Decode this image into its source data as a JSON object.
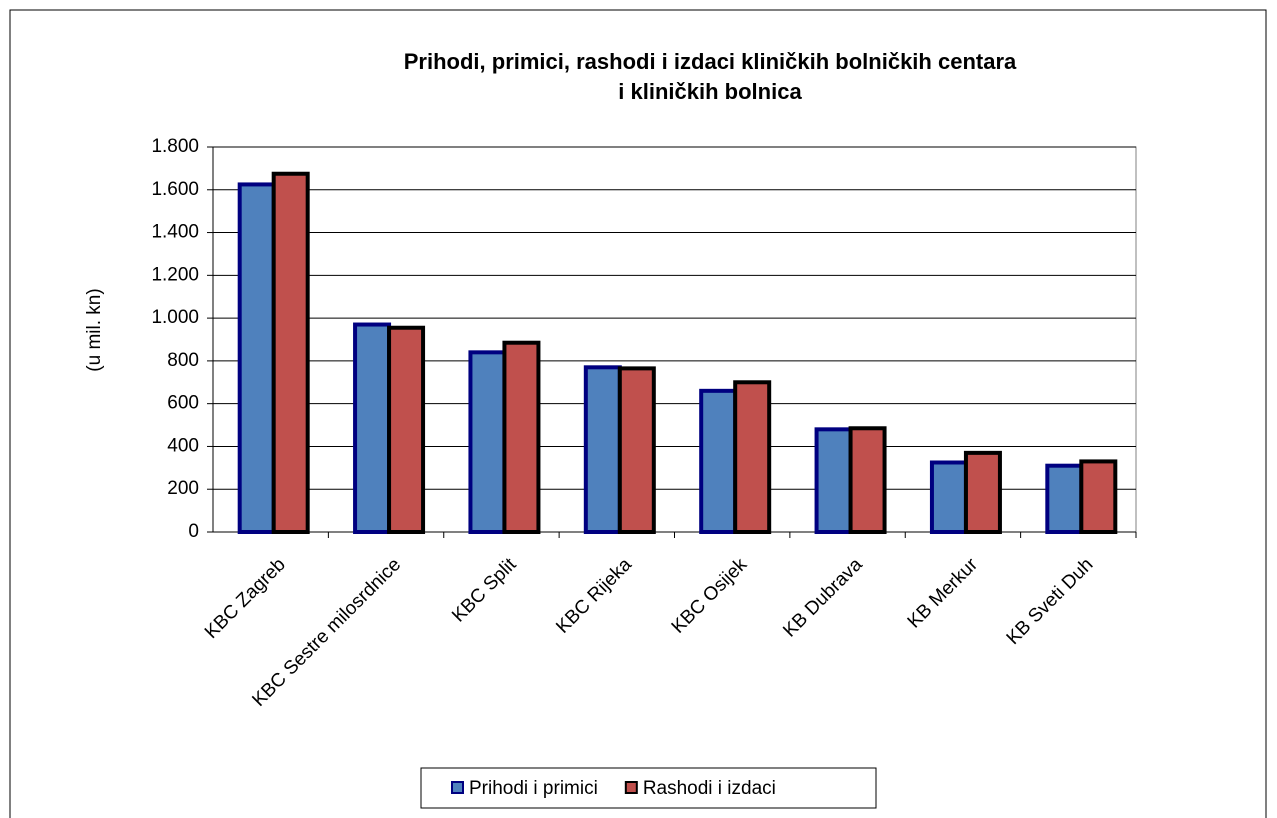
{
  "chart_data": {
    "type": "bar",
    "title": [
      "Prihodi, primici, rashodi i izdaci kliničkih bolničkih centara",
      "i kliničkih bolnica"
    ],
    "y_label": "(u mil. kn)",
    "categories": [
      "KBC Zagreb",
      "KBC Sestre milosrdnice",
      "KBC Split",
      "KBC Rijeka",
      "KBC Osijek",
      "KB Dubrava",
      "KB Merkur",
      "KB Sveti Duh"
    ],
    "series": [
      {
        "name": "Prihodi i primici",
        "color": "#4f81bd",
        "values": [
          1625,
          970,
          840,
          770,
          660,
          480,
          325,
          310
        ]
      },
      {
        "name": "Rashodi i izdaci",
        "color": "#c0504d",
        "values": [
          1675,
          955,
          885,
          765,
          700,
          485,
          370,
          330
        ]
      }
    ],
    "ylim": [
      0,
      1800
    ],
    "yticks": [
      0,
      200,
      400,
      600,
      800,
      {
        "value": 1000,
        "label": "1.000"
      },
      {
        "value": 1200,
        "label": "1.200"
      },
      {
        "value": 1400,
        "label": "1.400"
      },
      {
        "value": 1600,
        "label": "1.600"
      },
      {
        "value": 1800,
        "label": "1.800"
      }
    ],
    "grid": true,
    "legend": "bottom"
  }
}
